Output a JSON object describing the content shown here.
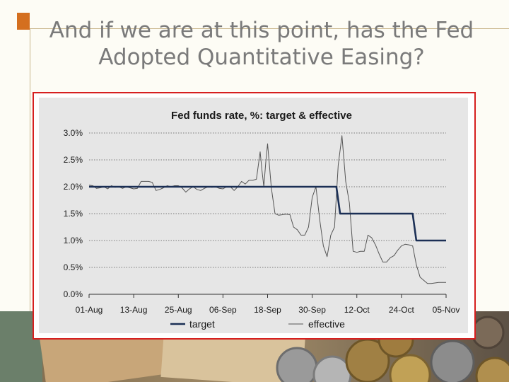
{
  "slide": {
    "title": "And if we are at this point, has the Fed Adopted Quantitative Easing?"
  },
  "colors": {
    "accent": "#d46f1f",
    "frame_border": "#d61f1f",
    "chart_bg": "#e6e6e6",
    "target_line": "#1b2f55",
    "effective_line": "#555555"
  },
  "chart_data": {
    "type": "line",
    "title": "Fed funds rate, %: target & effective",
    "ylim": [
      0,
      3
    ],
    "ytick_labels": [
      "0.0%",
      "0.5%",
      "1.0%",
      "1.5%",
      "2.0%",
      "2.5%",
      "3.0%"
    ],
    "ytick_values": [
      0,
      0.5,
      1.0,
      1.5,
      2.0,
      2.5,
      3.0
    ],
    "xtick_labels": [
      "01-Aug",
      "13-Aug",
      "25-Aug",
      "06-Sep",
      "18-Sep",
      "30-Sep",
      "12-Oct",
      "24-Oct",
      "05-Nov"
    ],
    "xtick_values": [
      0,
      12,
      24,
      36,
      48,
      60,
      72,
      84,
      96
    ],
    "xlim": [
      0,
      96
    ],
    "grid": true,
    "legend_position": "bottom",
    "series": [
      {
        "name": "target",
        "x": [
          0,
          66.5,
          67.5,
          87,
          88,
          96
        ],
        "y": [
          2.0,
          2.0,
          1.5,
          1.5,
          1.0,
          1.0
        ]
      },
      {
        "name": "effective",
        "x": [
          0,
          1,
          2,
          3,
          4,
          5,
          6,
          7,
          8,
          9,
          10,
          11,
          12,
          13,
          14,
          15,
          16,
          17,
          18,
          19,
          20,
          21,
          22,
          23,
          24,
          25,
          26,
          27,
          28,
          29,
          30,
          31,
          32,
          33,
          34,
          35,
          36,
          37,
          38,
          39,
          40,
          41,
          42,
          43,
          44,
          45,
          46,
          46.5,
          47,
          47.5,
          48,
          48.5,
          49,
          50,
          51,
          52,
          53,
          54,
          55,
          56,
          57,
          58,
          59,
          60,
          61,
          62,
          63,
          64,
          65,
          66,
          67,
          68,
          69,
          70,
          71,
          72,
          73,
          74,
          75,
          76,
          77,
          78,
          79,
          80,
          81,
          82,
          83,
          84,
          85,
          86,
          87,
          88,
          89,
          90,
          91,
          92,
          93,
          94,
          95,
          96
        ],
        "y": [
          2.03,
          2.02,
          1.97,
          1.98,
          2.0,
          1.96,
          2.02,
          1.99,
          2.0,
          1.97,
          2.0,
          1.98,
          1.96,
          1.97,
          2.1,
          2.1,
          2.1,
          2.08,
          1.93,
          1.95,
          1.98,
          2.02,
          2.0,
          2.02,
          2.02,
          1.98,
          1.9,
          1.96,
          2.0,
          1.95,
          1.93,
          1.97,
          2.0,
          1.99,
          2.0,
          1.97,
          1.96,
          2.0,
          2.0,
          1.93,
          2.0,
          2.1,
          2.05,
          2.12,
          2.12,
          2.14,
          2.65,
          2.3,
          2.0,
          2.45,
          2.8,
          2.4,
          1.98,
          1.5,
          1.47,
          1.48,
          1.49,
          1.48,
          1.25,
          1.2,
          1.1,
          1.1,
          1.25,
          1.8,
          2.0,
          1.4,
          0.9,
          0.7,
          1.1,
          1.25,
          2.4,
          2.95,
          2.1,
          1.7,
          0.8,
          0.78,
          0.8,
          0.8,
          1.1,
          1.05,
          0.92,
          0.75,
          0.6,
          0.6,
          0.68,
          0.72,
          0.82,
          0.9,
          0.93,
          0.92,
          0.9,
          0.55,
          0.32,
          0.26,
          0.2,
          0.2,
          0.21,
          0.22,
          0.22,
          0.22
        ]
      }
    ]
  }
}
